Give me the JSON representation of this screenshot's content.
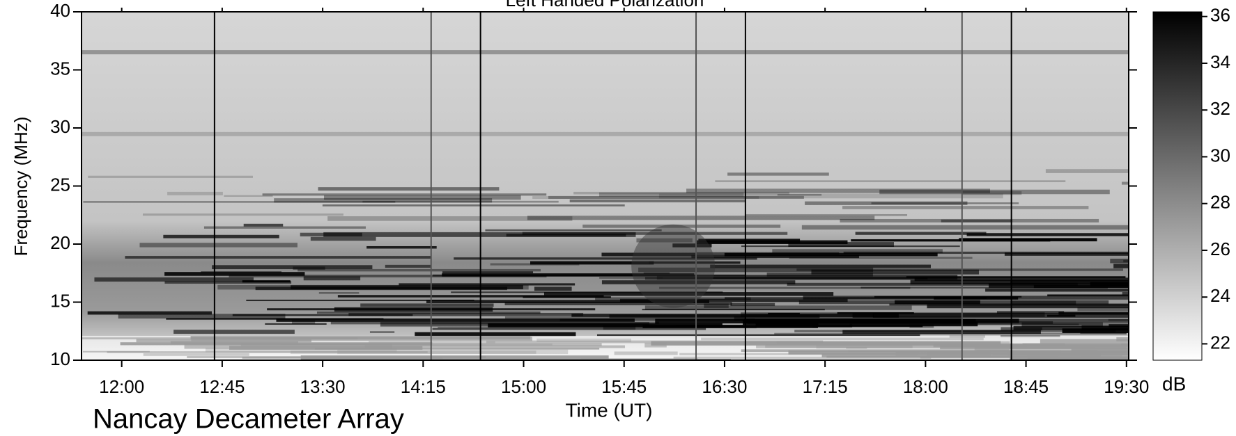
{
  "chart_data": {
    "type": "spectrogram",
    "title": "Left Handed Polarization",
    "xlabel": "Time (UT)",
    "ylabel": "Frequency (MHz)",
    "footer": "Nancay Decameter Array",
    "colorbar_label": "dB",
    "xlim": [
      702,
      1171
    ],
    "xticks": [
      {
        "value": 720,
        "label": "12:00"
      },
      {
        "value": 765,
        "label": "12:45"
      },
      {
        "value": 810,
        "label": "13:30"
      },
      {
        "value": 855,
        "label": "14:15"
      },
      {
        "value": 900,
        "label": "15:00"
      },
      {
        "value": 945,
        "label": "15:45"
      },
      {
        "value": 990,
        "label": "16:30"
      },
      {
        "value": 1035,
        "label": "17:15"
      },
      {
        "value": 1080,
        "label": "18:00"
      },
      {
        "value": 1125,
        "label": "18:45"
      },
      {
        "value": 1170,
        "label": "19:30"
      }
    ],
    "ylim": [
      10,
      40
    ],
    "yticks": [
      10,
      15,
      20,
      25,
      30,
      35,
      40
    ],
    "clim": [
      21.3,
      36.2
    ],
    "cticks": [
      22,
      24,
      26,
      28,
      30,
      32,
      34,
      36
    ],
    "colormap": [
      "#ffffff",
      "#000000"
    ]
  }
}
